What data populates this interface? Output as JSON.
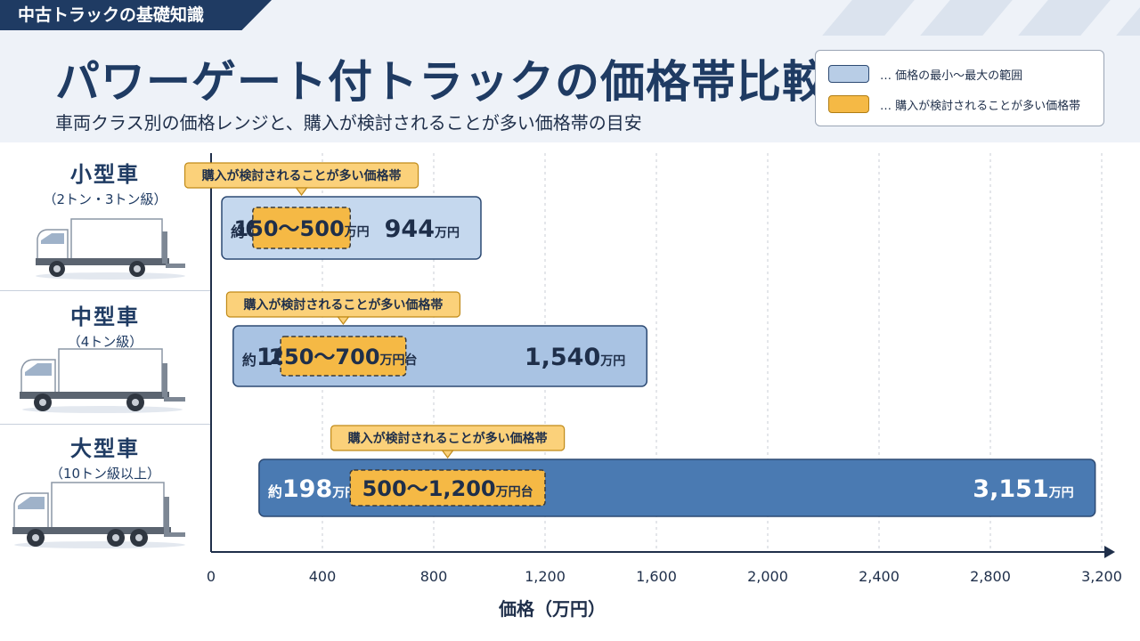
{
  "header": {
    "tagline": "中古トラックの基礎知識",
    "title": "パワーゲート付トラックの価格帯比較",
    "subtitle": "車両クラス別の価格レンジと、購入が検討されることが多い価格帯の目安"
  },
  "legend": [
    {
      "label": "… 価格の最小〜最大の範囲",
      "color": "#b8cde6"
    },
    {
      "label": "… 購入が検討されることが多い価格帯",
      "color": "#f5b945"
    }
  ],
  "categories": [
    {
      "name": "小型車",
      "sub": "（2トン・3トン級）",
      "truck_icon": "small-truck-with-power-gate-icon"
    },
    {
      "name": "中型車",
      "sub": "（4トン級）",
      "truck_icon": "medium-truck-with-power-gate-icon"
    },
    {
      "name": "大型車",
      "sub": "（10トン級以上）",
      "truck_icon": "large-truck-with-power-gate-icon"
    }
  ],
  "chart_data": {
    "type": "bar",
    "orientation": "horizontal-range",
    "categories": [
      "小型車",
      "中型車",
      "大型車"
    ],
    "x_ticks": [
      0,
      400,
      800,
      1200,
      1600,
      2000,
      2400,
      2800,
      3200
    ],
    "x_tick_labels": [
      "0",
      "400",
      "800",
      "1,200",
      "1,600",
      "2,000",
      "2,400",
      "2,800",
      "3,200"
    ],
    "xlim": [
      0,
      3200
    ],
    "xlabel": "価格（万円）",
    "grid": "vertical-dashed",
    "series": [
      {
        "name": "価格の最小〜最大の範囲",
        "ranges": [
          [
            64,
            944
          ],
          [
            105,
            1540
          ],
          [
            198,
            3151
          ]
        ],
        "colors": [
          "#c5d8ee",
          "#a9c3e3",
          "#4a7ab2"
        ],
        "min_labels": [
          {
            "prefix": "約",
            "num": "64",
            "unit": "万円"
          },
          {
            "prefix": "約",
            "num": "105",
            "unit": "万円"
          },
          {
            "prefix": "約",
            "num": "198",
            "unit": "万円"
          }
        ],
        "max_labels": [
          {
            "num": "944",
            "unit": "万円"
          },
          {
            "num": "1,540",
            "unit": "万円"
          },
          {
            "num": "3,151",
            "unit": "万円"
          }
        ]
      },
      {
        "name": "購入が検討されることが多い価格帯",
        "ranges": [
          [
            150,
            500
          ],
          [
            250,
            700
          ],
          [
            500,
            1200
          ]
        ],
        "color": "#f5b945",
        "labels": [
          {
            "num": "150〜500",
            "unit": "万円"
          },
          {
            "num": "250〜700",
            "unit": "万円台"
          },
          {
            "num": "500〜1,200",
            "unit": "万円台"
          }
        ],
        "callout": "購入が検討されることが多い価格帯"
      }
    ]
  }
}
